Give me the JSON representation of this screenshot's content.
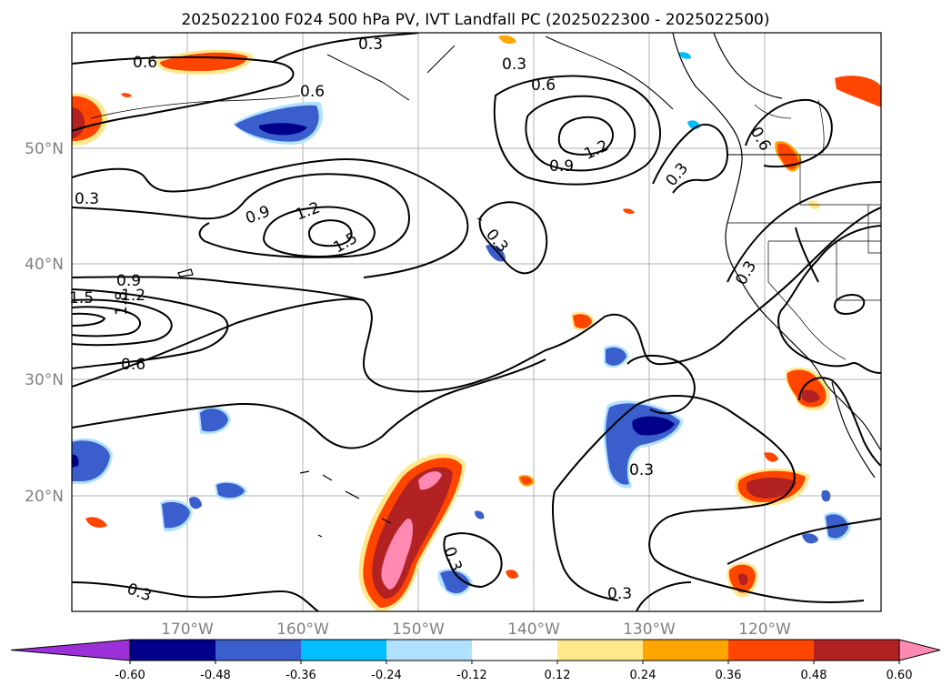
{
  "map": {
    "title": "2025022100 F024 500 hPa PV, IVT Landfall PC (2025022300 - 2025022500)",
    "lon_ticks": [
      "170°W",
      "160°W",
      "150°W",
      "140°W",
      "130°W",
      "120°W"
    ],
    "lat_ticks": [
      "50°N",
      "40°N",
      "30°N",
      "20°N"
    ],
    "extent": {
      "lon": [
        -180,
        -110
      ],
      "lat": [
        10,
        60
      ]
    },
    "grid": true,
    "contour_labels": [
      "0.6",
      "0.9",
      "1.2",
      "1.5",
      "1.8",
      "0.3",
      "0.6",
      "0.9",
      "1.2",
      "1.5",
      "0.3",
      "0.6",
      "0.9",
      "1.2",
      "0.3",
      "0.3",
      "0.3",
      "0.3",
      "0.6",
      "0.3",
      "0.6",
      "0.3",
      "0.3",
      "0.3"
    ]
  },
  "colorbar": {
    "ticks": [
      "-0.60",
      "-0.48",
      "-0.36",
      "-0.24",
      "-0.12",
      "0.12",
      "0.24",
      "0.36",
      "0.48",
      "0.60"
    ],
    "colors": [
      "#9b30d9",
      "#00008b",
      "#3a5fcd",
      "#00bfff",
      "#b0e2ff",
      "#ffffff",
      "#ffe88c",
      "#ffa500",
      "#ff4500",
      "#b22222",
      "#ff89b3"
    ]
  }
}
